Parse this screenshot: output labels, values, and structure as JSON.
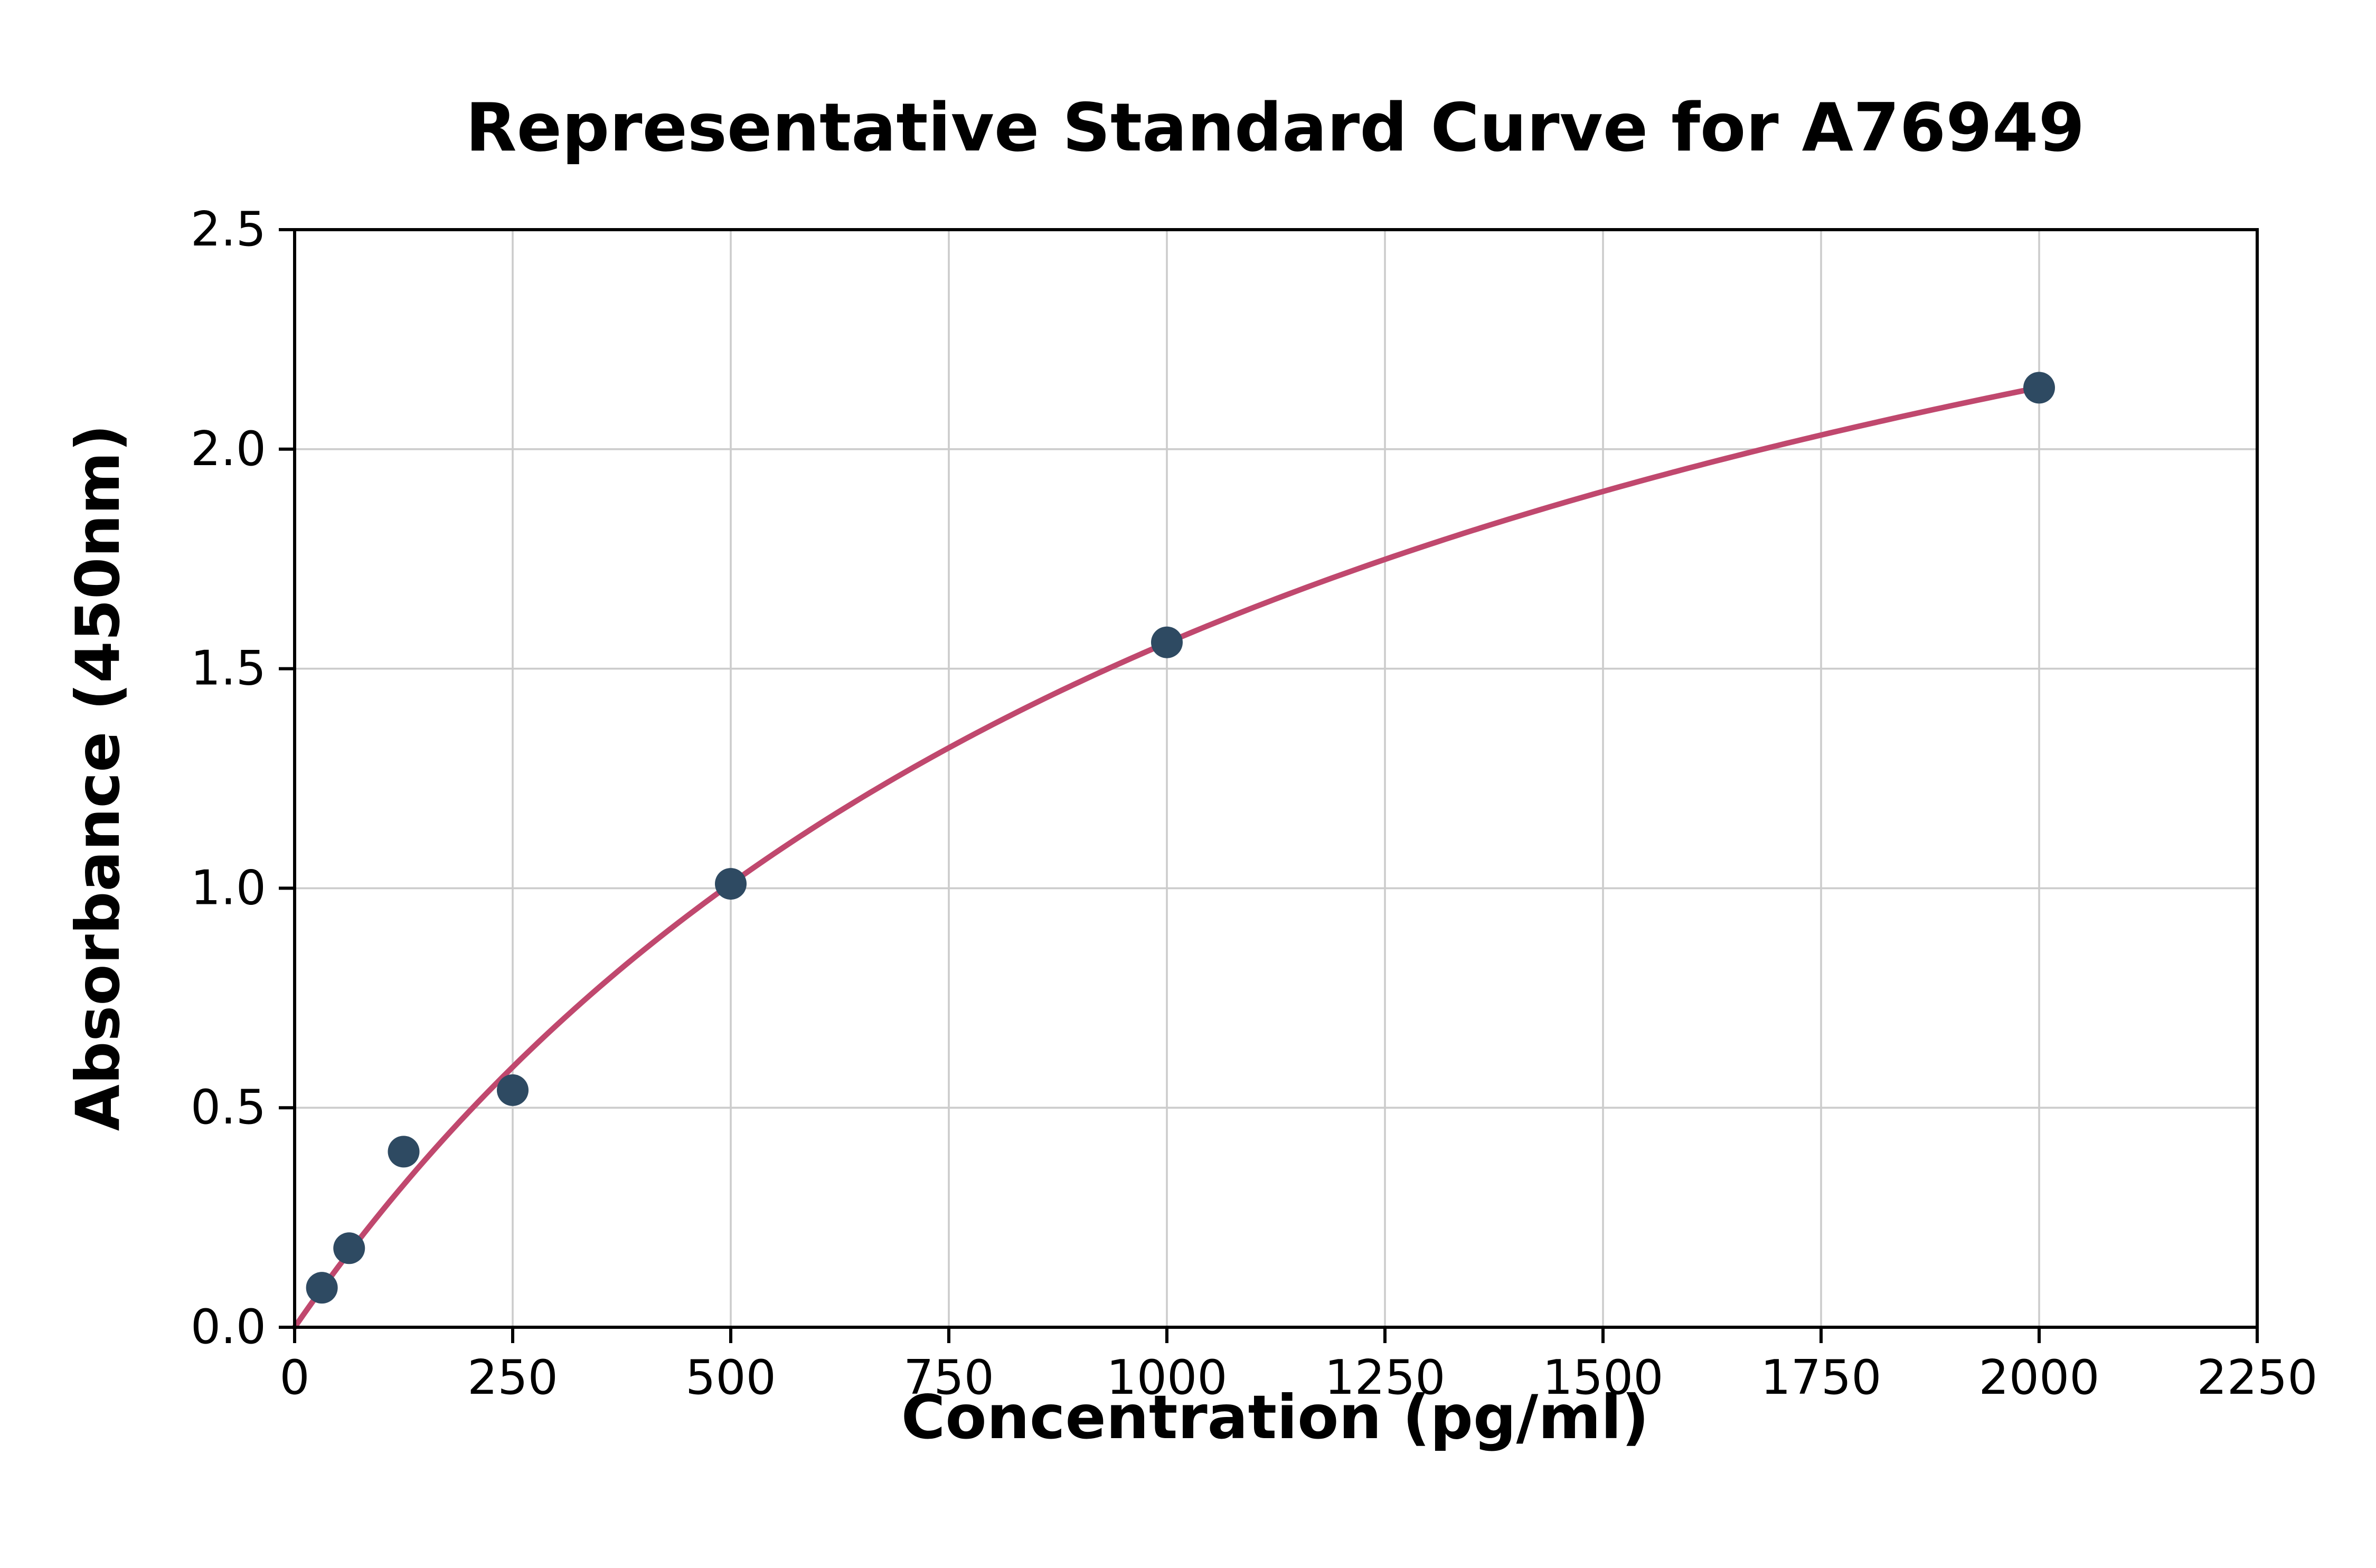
{
  "page": {
    "background": "#ffffff"
  },
  "chart_data": {
    "type": "scatter",
    "title": "Representative Standard Curve for A76949",
    "xlabel": "Concentration (pg/ml)",
    "ylabel": "Absorbance (450nm)",
    "xlim": [
      0,
      2250
    ],
    "ylim": [
      0,
      2.5
    ],
    "xticks": [
      0,
      250,
      500,
      750,
      1000,
      1250,
      1500,
      1750,
      2000,
      2250
    ],
    "xtick_labels": [
      "0",
      "250",
      "500",
      "750",
      "1000",
      "1250",
      "1500",
      "1750",
      "2000",
      "2250"
    ],
    "yticks": [
      0,
      0.5,
      1,
      1.5,
      2,
      2.5
    ],
    "ytick_labels": [
      "0.0",
      "0.5",
      "1.0",
      "1.5",
      "2.0",
      "2.5"
    ],
    "grid": true,
    "legend_position": "none",
    "series": [
      {
        "name": "standards",
        "type": "scatter",
        "color": "#2e4a62",
        "marker": "circle",
        "points": [
          {
            "x": 31.25,
            "y": 0.09
          },
          {
            "x": 62.5,
            "y": 0.18
          },
          {
            "x": 125,
            "y": 0.4
          },
          {
            "x": 250,
            "y": 0.54
          },
          {
            "x": 500,
            "y": 1.01
          },
          {
            "x": 1000,
            "y": 1.56
          },
          {
            "x": 2000,
            "y": 2.14
          }
        ]
      },
      {
        "name": "fitted-curve",
        "type": "line",
        "color": "#c0486e",
        "model": "y = a*x / (b + x)",
        "a": 3.414,
        "b": 1190,
        "x_range": [
          0,
          2000
        ]
      }
    ],
    "style": {
      "grid_color": "#cccccc",
      "spine_color": "#000000",
      "background": "#ffffff",
      "marker_radius": 10,
      "curve_width": 3.5
    }
  }
}
